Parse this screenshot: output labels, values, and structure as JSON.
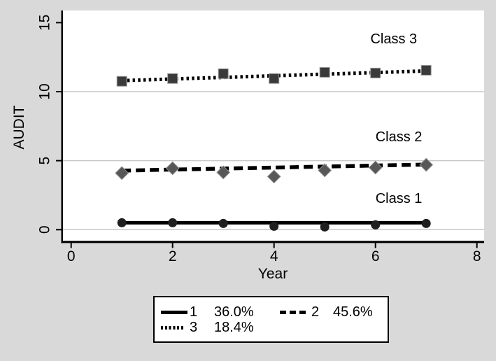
{
  "figure": {
    "background": "#d9d9d9",
    "plot_background": "#ffffff",
    "gridline_color": "#c9c9c9",
    "axis_color": "#000000",
    "text_color": "#000000"
  },
  "chart_data": {
    "type": "line",
    "title": "",
    "xlabel": "Year",
    "ylabel": "AUDIT",
    "xlim": [
      0,
      8.15
    ],
    "ylim": [
      0,
      15.9
    ],
    "x_ticks": [
      0,
      2,
      4,
      6,
      8
    ],
    "y_ticks": [
      0,
      5,
      10,
      15
    ],
    "gridlines_y": [
      0,
      5,
      10
    ],
    "grid": "horizontal gridlines only",
    "legend_position": "bottom outside, boxed, 2 rows",
    "x": [
      1,
      2,
      3,
      4,
      5,
      6,
      7
    ],
    "series": [
      {
        "name": "Class 1",
        "legend_label": "1",
        "legend_pct": "36.0%",
        "line_style": "solid",
        "marker": "circle",
        "marker_color": "#1f1f1f",
        "line_color": "#000000",
        "values": [
          0.5,
          0.5,
          0.45,
          0.25,
          0.2,
          0.35,
          0.45
        ],
        "trend_line": {
          "x1": 1,
          "y1": 0.5,
          "x2": 7,
          "y2": 0.5
        }
      },
      {
        "name": "Class 2",
        "legend_label": "2",
        "legend_pct": "45.6%",
        "line_style": "dashed",
        "marker": "diamond",
        "marker_color": "#575757",
        "line_color": "#000000",
        "values": [
          4.1,
          4.45,
          4.15,
          3.85,
          4.3,
          4.5,
          4.7
        ],
        "trend_line": {
          "x1": 1,
          "y1": 4.28,
          "x2": 7,
          "y2": 4.72
        }
      },
      {
        "name": "Class 3",
        "legend_label": "3",
        "legend_pct": "18.4%",
        "line_style": "dotted",
        "marker": "square",
        "marker_color": "#3a3a3a",
        "line_color": "#000000",
        "values": [
          10.75,
          10.95,
          11.3,
          10.95,
          11.4,
          11.35,
          11.55
        ],
        "trend_line": {
          "x1": 1,
          "y1": 10.8,
          "x2": 7,
          "y2": 11.5
        }
      }
    ],
    "annotations": [
      {
        "text": "Class 3",
        "x": 6.36,
        "y": 13.5
      },
      {
        "text": "Class 2",
        "x": 6.46,
        "y": 6.4
      },
      {
        "text": "Class 1",
        "x": 6.46,
        "y": 1.95
      }
    ]
  }
}
